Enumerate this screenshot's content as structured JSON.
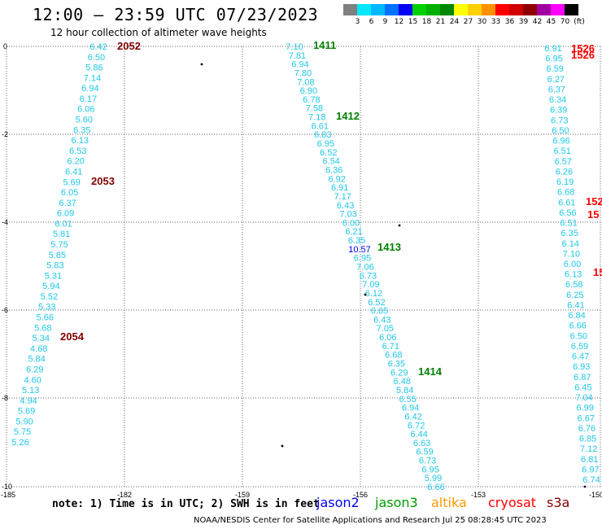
{
  "header": {
    "title": "12:00 – 23:59 UTC 07/23/2023",
    "subtitle": "12 hour collection of altimeter wave heights"
  },
  "legend": {
    "unit_label": "(ft)",
    "swatches": [
      {
        "label": "",
        "color": "#808080"
      },
      {
        "label": "3",
        "color": "#00e8ff"
      },
      {
        "label": "6",
        "color": "#00b8ff"
      },
      {
        "label": "9",
        "color": "#0070ff"
      },
      {
        "label": "12",
        "color": "#0000ff"
      },
      {
        "label": "15",
        "color": "#00d000"
      },
      {
        "label": "18",
        "color": "#00b000"
      },
      {
        "label": "21",
        "color": "#008800"
      },
      {
        "label": "24",
        "color": "#ffff00"
      },
      {
        "label": "27",
        "color": "#ffd000"
      },
      {
        "label": "30",
        "color": "#ff9000"
      },
      {
        "label": "33",
        "color": "#ff0000"
      },
      {
        "label": "36",
        "color": "#d00000"
      },
      {
        "label": "39",
        "color": "#900000"
      },
      {
        "label": "42",
        "color": "#a000a0"
      },
      {
        "label": "45",
        "color": "#ff00ff"
      },
      {
        "label": "70",
        "color": "#000000"
      }
    ]
  },
  "map": {
    "lon_labels": [
      "-185",
      "-182",
      "-159",
      "-156",
      "-153",
      "-150"
    ],
    "lat_labels": [
      "0",
      "-2",
      "-4",
      "-6",
      "-8",
      "-10"
    ],
    "colors": {
      "cyan": "#20c8e8",
      "blue": "#0000ff",
      "purple": "#8000a0",
      "green": "#008000",
      "darkred": "#800000",
      "red": "#ff0000"
    },
    "time_labels": [
      {
        "text": "2052",
        "color": "darkred"
      },
      {
        "text": "2053",
        "color": "darkred"
      },
      {
        "text": "2054",
        "color": "darkred"
      },
      {
        "text": "1411",
        "color": "green"
      },
      {
        "text": "1412",
        "color": "green"
      },
      {
        "text": "1413",
        "color": "green"
      },
      {
        "text": "1414",
        "color": "green"
      },
      {
        "text": "1526",
        "color": "red"
      },
      {
        "text": "1526",
        "color": "red"
      },
      {
        "text": "152",
        "color": "red"
      },
      {
        "text": "15",
        "color": "red"
      },
      {
        "text": "15",
        "color": "red"
      }
    ],
    "track1": [
      "6.42",
      "6.50",
      "5.86",
      "7.14",
      "6.94",
      "6.17",
      "6.06",
      "5.60",
      "6.35",
      "6.13",
      "6.53",
      "6.20",
      "6.41",
      "5.69",
      "6.05",
      "6.37",
      "6.09",
      "6.01",
      "5.81",
      "5.75",
      "5.85",
      "5.83",
      "5.31",
      "5.94",
      "5.52",
      "5.33",
      "5.66",
      "5.68",
      "5.34",
      "4.68",
      "5.84",
      "6.29",
      "4.60",
      "5.13",
      "4.94",
      "5.69",
      "5.90",
      "5.75",
      "5.26"
    ],
    "track2": [
      "7.10",
      "7.81",
      "6.94",
      "7.80",
      "7.08",
      "6.90",
      "6.78",
      "7.58",
      "7.18",
      "6.61",
      "6.83",
      "6.95",
      "6.52",
      "6.54",
      "6.36",
      "6.92",
      "6.91",
      "7.17",
      "6.43",
      "7.03",
      "6.00",
      "6.21",
      "6.35",
      "10.57",
      "6.95",
      "7.06",
      "6.73",
      "7.09",
      "6.12",
      "6.52",
      "6.65",
      "6.43",
      "7.05",
      "6.06",
      "6.71",
      "6.68",
      "6.35",
      "6.29",
      "6.48",
      "5.84",
      "6.55",
      "6.94",
      "6.42",
      "6.72",
      "6.44",
      "6.63",
      "6.59",
      "6.73",
      "6.95",
      "5.99",
      "6.66"
    ],
    "track3": [
      "6.91",
      "6.95",
      "6.59",
      "6.27",
      "6.37",
      "6.34",
      "6.39",
      "6.73",
      "6.50",
      "6.96",
      "6.51",
      "6.57",
      "6.26",
      "6.19",
      "6.68",
      "6.61",
      "6.56",
      "6.51",
      "6.35",
      "6.14",
      "7.10",
      "6.00",
      "6.13",
      "6.58",
      "6.25",
      "6.41",
      "6.84",
      "6.66",
      "6.50",
      "6.59",
      "6.47",
      "6.93",
      "6.87",
      "6.45",
      "7.04",
      "6.99",
      "6.67",
      "6.76",
      "6.85",
      "7.12",
      "6.81",
      "6.97",
      "6.74"
    ]
  },
  "bottom": {
    "note": "note: 1) Time is in UTC; 2) SWH is in feet",
    "satellites": [
      {
        "name": "jason2",
        "color": "#0000ff"
      },
      {
        "name": "jason3",
        "color": "#00a000"
      },
      {
        "name": "altika",
        "color": "#ff9900"
      },
      {
        "name": "cryosat",
        "color": "#ff0000"
      },
      {
        "name": "s3a",
        "color": "#800000"
      }
    ],
    "footer": "NOAA/NESDIS Center for Satellite Applications and Research    Jul 25 08:28:45 UTC 2023"
  }
}
